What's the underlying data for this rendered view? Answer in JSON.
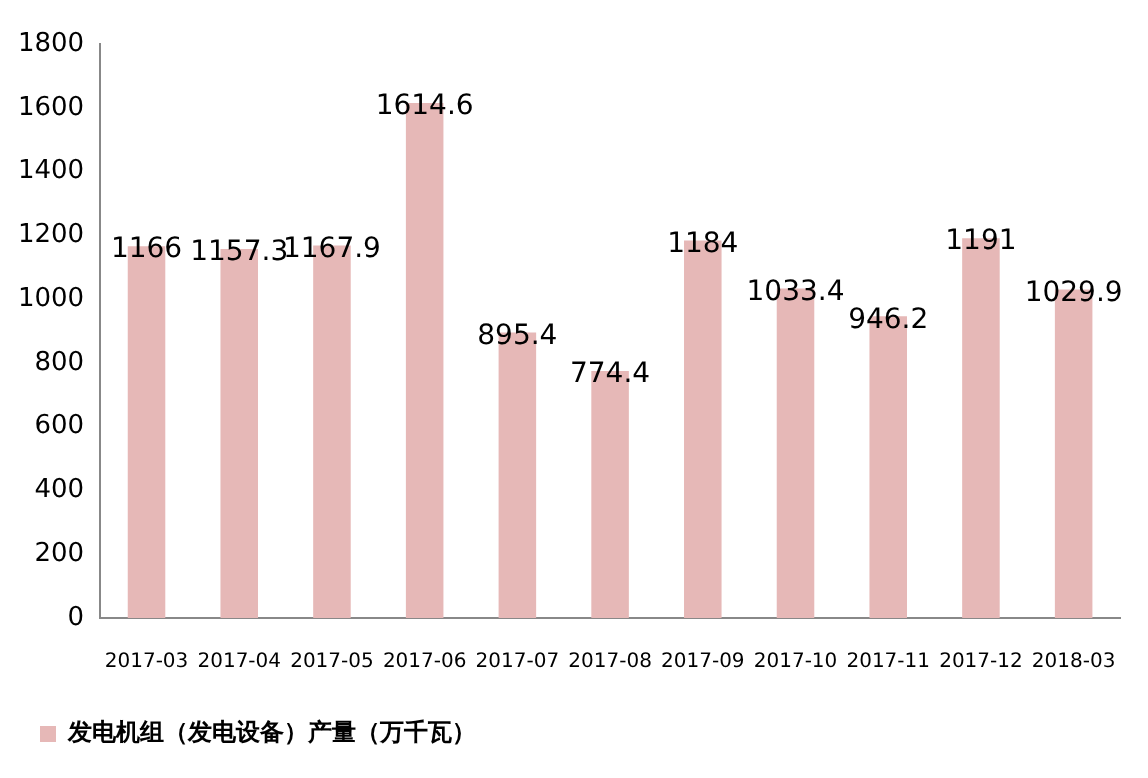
{
  "chart_data": {
    "type": "bar",
    "categories": [
      "2017-03",
      "2017-04",
      "2017-05",
      "2017-06",
      "2017-07",
      "2017-08",
      "2017-09",
      "2017-10",
      "2017-11",
      "2017-12",
      "2018-03"
    ],
    "series": [
      {
        "name": "发电机组（发电设备）产量（万千瓦）",
        "color": "#e6b8b7",
        "values": [
          1166,
          1157.3,
          1167.9,
          1614.6,
          895.4,
          774.4,
          1184,
          1033.4,
          946.2,
          1191,
          1029.9
        ]
      }
    ],
    "ylim": [
      0,
      1800
    ],
    "yticks": [
      0,
      200,
      400,
      600,
      800,
      1000,
      1200,
      1400,
      1600,
      1800
    ],
    "grid": false,
    "legend": "bottom left",
    "data_labels": true
  }
}
